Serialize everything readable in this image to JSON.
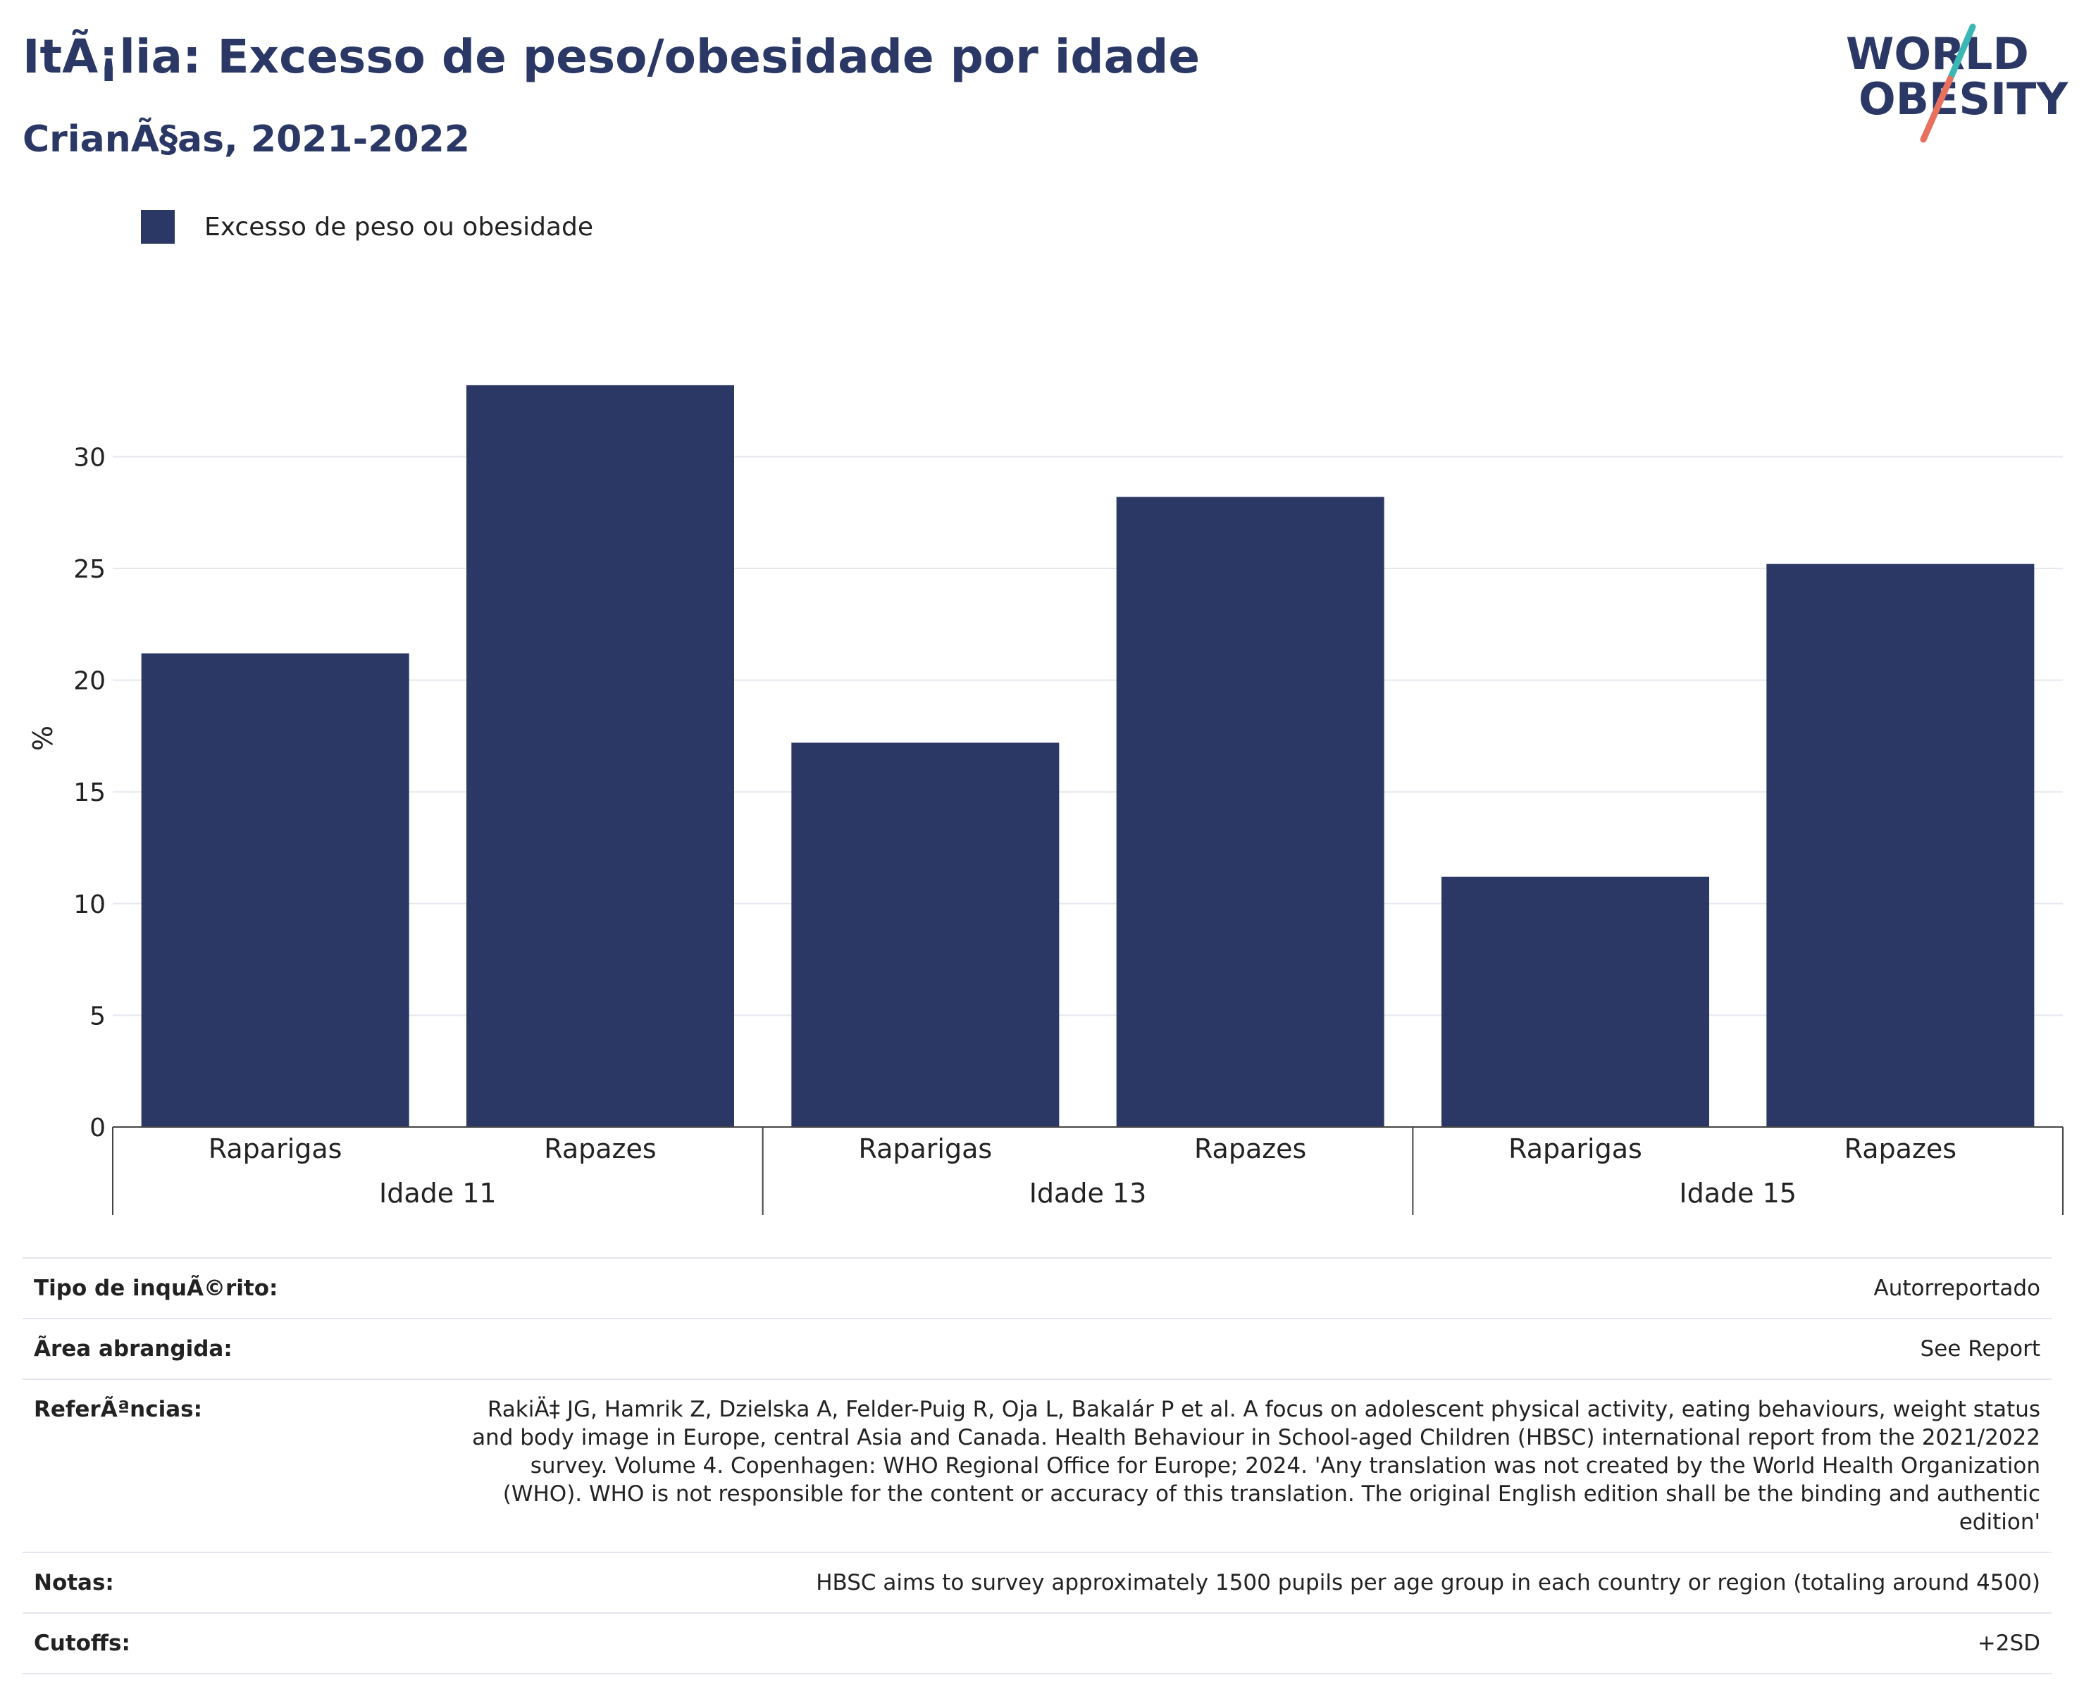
{
  "header": {
    "title": "ItÃ¡lia: Excesso de peso/obesidade por idade",
    "subtitle": "CrianÃ§as, 2021-2022"
  },
  "logo": {
    "line1": "WORLD",
    "line2": "OBESITY",
    "accent_teal": "#3bb8b6",
    "accent_coral": "#e8705f"
  },
  "colors": {
    "bar": "#2b3866",
    "title": "#2b3866",
    "grid": "#e5e8ef"
  },
  "chart_data": {
    "type": "bar",
    "legend": {
      "label": "Excesso de peso ou obesidade",
      "placement": "top-left"
    },
    "ylabel": "%",
    "ylim": [
      0,
      35
    ],
    "yticks": [
      0,
      5,
      10,
      15,
      20,
      25,
      30
    ],
    "grid": true,
    "groups": [
      {
        "label": "Idade 11",
        "categories": [
          "Raparigas",
          "Rapazes"
        ],
        "values": [
          21.2,
          33.2
        ]
      },
      {
        "label": "Idade 13",
        "categories": [
          "Raparigas",
          "Rapazes"
        ],
        "values": [
          17.2,
          28.2
        ]
      },
      {
        "label": "Idade 15",
        "categories": [
          "Raparigas",
          "Rapazes"
        ],
        "values": [
          11.2,
          25.2
        ]
      }
    ],
    "series": [
      {
        "name": "Excesso de peso ou obesidade"
      }
    ]
  },
  "info_table": [
    {
      "label": "Tipo de inquÃ©rito:",
      "value": "Autorreportado"
    },
    {
      "label": "Ãrea abrangida:",
      "value": "See Report"
    },
    {
      "label": "ReferÃªncias:",
      "value": "RakiÄ‡ JG, Hamrik Z, Dzielska A, Felder-Puig R, Oja L, Bakalár P et al. A focus on adolescent physical activity, eating behaviours, weight status and body image in Europe, central Asia and Canada. Health Behaviour in School-aged Children (HBSC) international report from the 2021/2022 survey. Volume 4. Copenhagen: WHO Regional Office for Europe; 2024. 'Any translation was not created by the World Health Organization (WHO). WHO is not responsible for the content or accuracy of this translation. The original English edition shall be the binding and authentic edition'"
    },
    {
      "label": "Notas:",
      "value": "HBSC aims to survey approximately 1500 pupils per age group in each country or region (totaling around 4500)"
    },
    {
      "label": "Cutoffs:",
      "value": "+2SD"
    }
  ]
}
